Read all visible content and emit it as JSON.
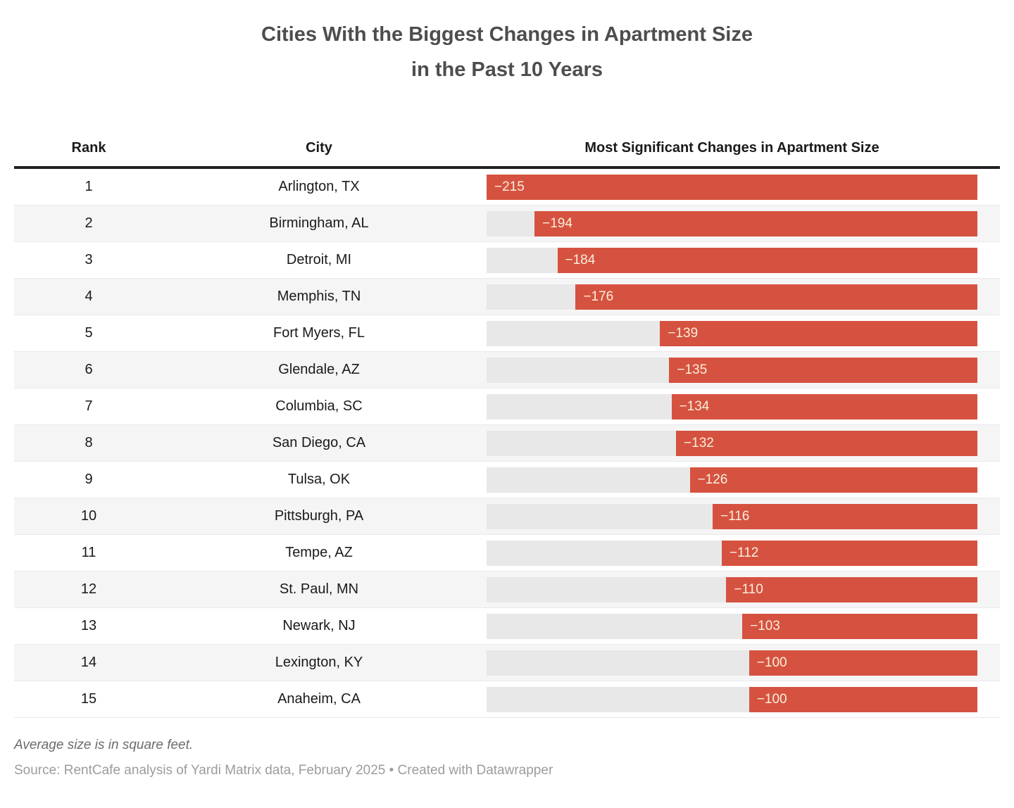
{
  "title": {
    "line1": "Cities With the Biggest Changes in Apartment Size",
    "line2": "in the Past 10 Years"
  },
  "table": {
    "columns": {
      "rank": "Rank",
      "city": "City",
      "change": "Most Significant Changes in Apartment Size"
    },
    "rows": [
      {
        "rank": "1",
        "city": "Arlington, TX",
        "value": -215,
        "label": "−215"
      },
      {
        "rank": "2",
        "city": "Birmingham, AL",
        "value": -194,
        "label": "−194"
      },
      {
        "rank": "3",
        "city": "Detroit, MI",
        "value": -184,
        "label": "−184"
      },
      {
        "rank": "4",
        "city": "Memphis, TN",
        "value": -176,
        "label": "−176"
      },
      {
        "rank": "5",
        "city": "Fort Myers, FL",
        "value": -139,
        "label": "−139"
      },
      {
        "rank": "6",
        "city": "Glendale, AZ",
        "value": -135,
        "label": "−135"
      },
      {
        "rank": "7",
        "city": "Columbia, SC",
        "value": -134,
        "label": "−134"
      },
      {
        "rank": "8",
        "city": "San Diego, CA",
        "value": -132,
        "label": "−132"
      },
      {
        "rank": "9",
        "city": "Tulsa, OK",
        "value": -126,
        "label": "−126"
      },
      {
        "rank": "10",
        "city": "Pittsburgh, PA",
        "value": -116,
        "label": "−116"
      },
      {
        "rank": "11",
        "city": "Tempe, AZ",
        "value": -112,
        "label": "−112"
      },
      {
        "rank": "12",
        "city": "St. Paul, MN",
        "value": -110,
        "label": "−110"
      },
      {
        "rank": "13",
        "city": "Newark, NJ",
        "value": -103,
        "label": "−103"
      },
      {
        "rank": "14",
        "city": "Lexington, KY",
        "value": -100,
        "label": "−100"
      },
      {
        "rank": "15",
        "city": "Anaheim, CA",
        "value": -100,
        "label": "−100"
      }
    ]
  },
  "footer": {
    "note": "Average size is in square feet.",
    "source": "Source: RentCafe analysis of Yardi Matrix data, February 2025 • Created with Datawrapper"
  },
  "colors": {
    "bar": "#d65240",
    "bar_track": "#e8e8e8",
    "bar_label": "#f8efdb",
    "row_stripe": "#f5f5f6",
    "header_rule": "#212121",
    "title_text": "#4d4d4d"
  },
  "chart_data": {
    "type": "bar",
    "orientation": "horizontal",
    "title": "Cities With the Biggest Changes in Apartment Size in the Past 10 Years",
    "categories": [
      "Arlington, TX",
      "Birmingham, AL",
      "Detroit, MI",
      "Memphis, TN",
      "Fort Myers, FL",
      "Glendale, AZ",
      "Columbia, SC",
      "San Diego, CA",
      "Tulsa, OK",
      "Pittsburgh, PA",
      "Tempe, AZ",
      "St. Paul, MN",
      "Newark, NJ",
      "Lexington, KY",
      "Anaheim, CA"
    ],
    "ranks": [
      1,
      2,
      3,
      4,
      5,
      6,
      7,
      8,
      9,
      10,
      11,
      12,
      13,
      14,
      15
    ],
    "values": [
      -215,
      -194,
      -184,
      -176,
      -139,
      -135,
      -134,
      -132,
      -126,
      -116,
      -112,
      -110,
      -103,
      -100,
      -100
    ],
    "xlabel": "Most Significant Changes in Apartment Size",
    "ylabel": "",
    "xlim": [
      -215,
      0
    ],
    "unit": "square feet",
    "grid": false,
    "legend": "none",
    "bar_anchor": "right",
    "note": "Average size is in square feet.",
    "source": "Source: RentCafe analysis of Yardi Matrix data, February 2025 • Created with Datawrapper"
  }
}
